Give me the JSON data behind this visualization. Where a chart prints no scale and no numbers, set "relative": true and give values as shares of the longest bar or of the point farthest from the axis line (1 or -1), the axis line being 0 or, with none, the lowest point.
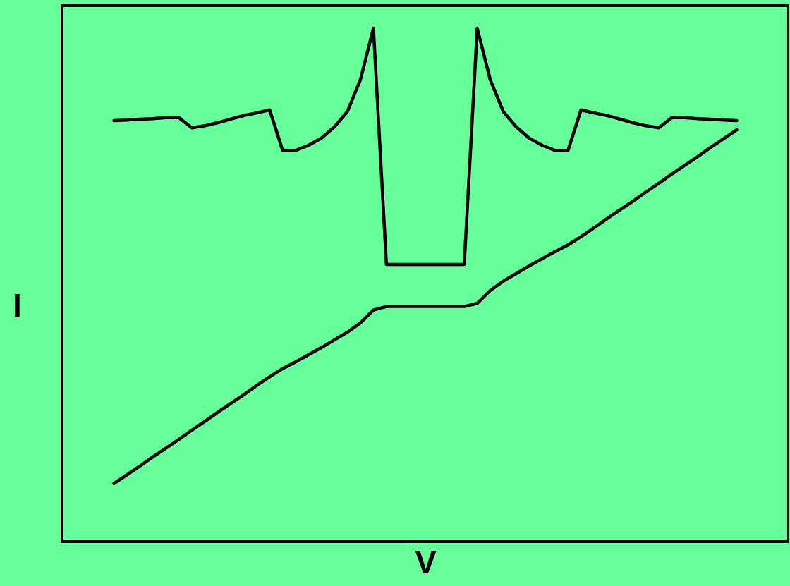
{
  "chart_data": {
    "type": "line",
    "relative": true,
    "xlabel": "V",
    "ylabel": "I",
    "grid": false,
    "legend": false,
    "tick_labels": false,
    "marker": "none",
    "line_style": "solid",
    "categories": [
      null,
      null,
      null,
      null,
      null,
      null,
      null,
      null,
      null,
      null,
      null,
      null,
      null,
      null,
      null,
      null,
      null,
      null,
      null,
      null,
      null,
      null,
      null,
      null,
      null,
      null,
      null,
      null,
      null,
      null,
      null,
      null,
      null,
      null,
      null,
      null,
      null,
      null,
      null,
      null,
      null,
      null,
      null,
      null,
      null,
      null,
      null,
      null,
      null
    ],
    "series": [
      {
        "color": "#000000",
        "values": [
          0.82,
          0.821,
          0.823,
          0.824,
          0.826,
          0.826,
          0.806,
          0.81,
          0.816,
          0.823,
          0.83,
          0.835,
          0.841,
          0.762,
          0.762,
          0.772,
          0.786,
          0.808,
          0.838,
          0.9,
          1.0,
          0.54,
          0.54,
          0.54,
          0.54,
          0.54,
          0.54,
          0.54,
          1.0,
          0.9,
          0.838,
          0.808,
          0.786,
          0.772,
          0.762,
          0.762,
          0.841,
          0.835,
          0.83,
          0.823,
          0.816,
          0.81,
          0.806,
          0.826,
          0.826,
          0.824,
          0.823,
          0.821,
          0.82
        ]
      },
      {
        "color": "#000000",
        "values": [
          0.113,
          0.13,
          0.147,
          0.165,
          0.182,
          0.199,
          0.217,
          0.234,
          0.252,
          0.269,
          0.286,
          0.304,
          0.321,
          0.337,
          0.35,
          0.364,
          0.378,
          0.393,
          0.408,
          0.426,
          0.451,
          0.458,
          0.458,
          0.458,
          0.458,
          0.458,
          0.458,
          0.458,
          0.464,
          0.489,
          0.507,
          0.522,
          0.537,
          0.551,
          0.565,
          0.578,
          0.594,
          0.611,
          0.629,
          0.646,
          0.663,
          0.681,
          0.698,
          0.716,
          0.733,
          0.75,
          0.768,
          0.785,
          0.802
        ]
      }
    ]
  }
}
